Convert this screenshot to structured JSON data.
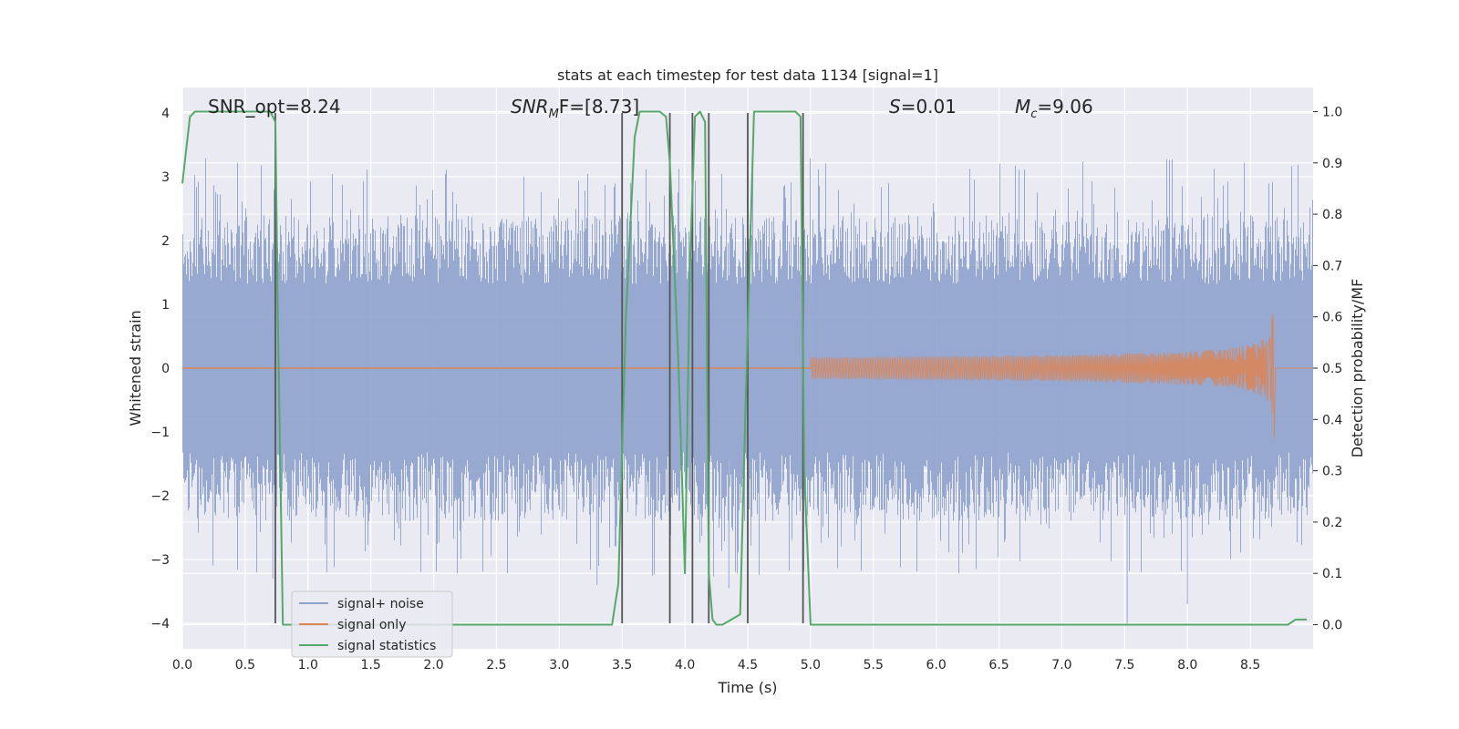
{
  "chart_data": {
    "type": "line",
    "title": "stats at each timestep for test data 1134 [signal=1]",
    "xlabel": "Time (s)",
    "ylabel": "Whitened strain",
    "y2label": "Detection probability/MF",
    "xlim": [
      0,
      9.0
    ],
    "ylim": [
      -4.4,
      4.4
    ],
    "y2lim": [
      -0.047,
      1.047
    ],
    "xticks": [
      "0.0",
      "0.5",
      "1.0",
      "1.5",
      "2.0",
      "2.5",
      "3.0",
      "3.5",
      "4.0",
      "4.5",
      "5.0",
      "5.5",
      "6.0",
      "6.5",
      "7.0",
      "7.5",
      "8.0",
      "8.5"
    ],
    "yticks": [
      "4",
      "3",
      "2",
      "1",
      "0",
      "−1",
      "−2",
      "−3",
      "−4"
    ],
    "y2ticks": [
      "1.0",
      "0.9",
      "0.8",
      "0.7",
      "0.6",
      "0.5",
      "0.4",
      "0.3",
      "0.2",
      "0.1",
      "0.0"
    ],
    "grid": true,
    "legend_position": "lower-left",
    "annotations": {
      "snr_opt": "SNR_opt=8.24",
      "snr_mf_base": "SNR",
      "snr_mf_sub": "M",
      "snr_mf_rest": "F=[8.73]",
      "s_sym": "S",
      "s_val": "=0.01",
      "mc_sym": "M",
      "mc_sub": "c",
      "mc_val": "=9.06"
    },
    "series": [
      {
        "name": "signal+ noise",
        "color": "#8ea2cc",
        "description": "whitened strain noise, approx +-2.4 with peaks to +-3.3",
        "amplitude_band": 2.4,
        "peak": 3.3
      },
      {
        "name": "signal only",
        "color": "#dd8452",
        "description": "chirp starting near 5.0 s growing to peak at 8.68 s",
        "start": 5.0,
        "merger": 8.68,
        "peak_amplitude": 1.0
      },
      {
        "name": "signal statistics",
        "color": "#55a868",
        "axis": "right",
        "x": [
          0.0,
          0.06,
          0.1,
          0.15,
          0.7,
          0.74,
          0.76,
          0.8,
          3.42,
          3.47,
          3.53,
          3.6,
          3.64,
          3.8,
          3.85,
          3.88,
          3.95,
          4.0,
          4.04,
          4.08,
          4.12,
          4.16,
          4.19,
          4.22,
          4.25,
          4.3,
          4.44,
          4.48,
          4.55,
          4.6,
          4.88,
          4.92,
          4.95,
          5.0,
          5.05,
          5.25,
          8.8,
          8.86,
          8.92,
          8.95
        ],
        "y": [
          0.86,
          0.99,
          1.0,
          1.0,
          1.0,
          0.98,
          0.6,
          0.0,
          0.0,
          0.08,
          0.6,
          0.95,
          1.0,
          1.0,
          0.99,
          0.9,
          0.5,
          0.1,
          0.7,
          0.99,
          1.0,
          0.98,
          0.1,
          0.01,
          0.0,
          0.0,
          0.02,
          0.4,
          1.0,
          1.0,
          1.0,
          0.99,
          0.3,
          0.0,
          0.0,
          0.0,
          0.0,
          0.01,
          0.01,
          0.01
        ]
      }
    ],
    "vertical_lines": [
      0.74,
      3.5,
      3.88,
      4.06,
      4.19,
      4.5,
      4.94
    ],
    "vertical_line_color": "#555555"
  }
}
